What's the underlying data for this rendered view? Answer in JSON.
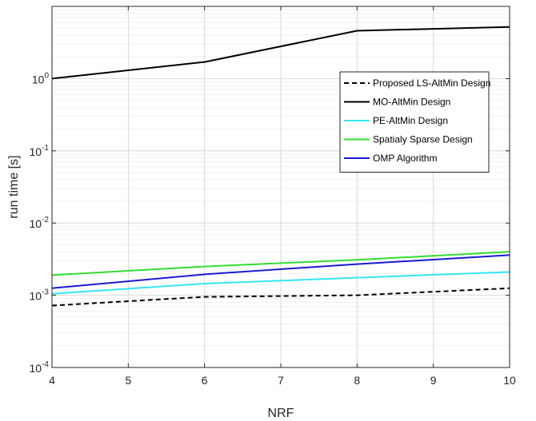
{
  "chart_data": {
    "type": "line",
    "xlabel": "NRF",
    "ylabel": "run time [s]",
    "x": [
      4,
      6,
      8,
      10
    ],
    "xlim": [
      4,
      10
    ],
    "ylim": [
      0.0001,
      10
    ],
    "yscale": "log",
    "grid": true,
    "legend_position": "top-right",
    "x_ticks": [
      "4",
      "5",
      "6",
      "7",
      "8",
      "9",
      "10"
    ],
    "y_ticks": [
      {
        "base": "10",
        "exp": "-4"
      },
      {
        "base": "10",
        "exp": "-3"
      },
      {
        "base": "10",
        "exp": "-2"
      },
      {
        "base": "10",
        "exp": "-1"
      },
      {
        "base": "10",
        "exp": "0"
      }
    ],
    "series": [
      {
        "name": "Proposed LS-AltMin Design",
        "color": "#000000",
        "dash": true,
        "values": [
          0.00072,
          0.00095,
          0.001,
          0.00125
        ]
      },
      {
        "name": "MO-AltMin Design",
        "color": "#000000",
        "dash": false,
        "values": [
          1.0,
          1.7,
          4.6,
          5.2
        ]
      },
      {
        "name": "PE-AltMin Design",
        "color": "#33e6f2",
        "dash": false,
        "values": [
          0.00105,
          0.00145,
          0.00175,
          0.0021
        ]
      },
      {
        "name": "Spatialy Sparse Design",
        "color": "#33dd33",
        "dash": false,
        "values": [
          0.0019,
          0.0025,
          0.0031,
          0.004
        ]
      },
      {
        "name": "OMP Algorithm",
        "color": "#1a1ad2",
        "dash": false,
        "values": [
          0.00125,
          0.00195,
          0.0027,
          0.0036
        ]
      }
    ]
  }
}
